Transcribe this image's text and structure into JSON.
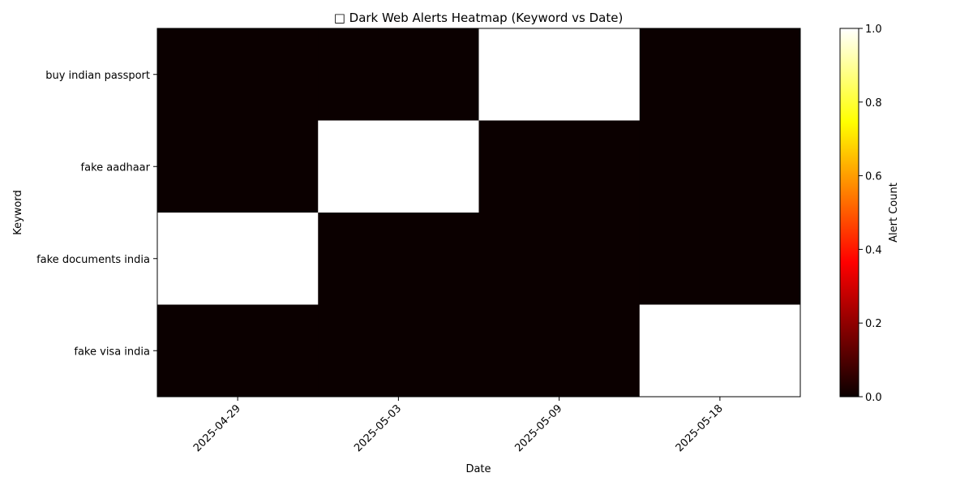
{
  "chart_data": {
    "type": "heatmap",
    "title": "□ Dark Web Alerts Heatmap (Keyword vs Date)",
    "xlabel": "Date",
    "ylabel": "Keyword",
    "x_categories": [
      "2025-04-29",
      "2025-05-03",
      "2025-05-09",
      "2025-05-18"
    ],
    "y_categories": [
      "buy indian passport",
      "fake aadhaar",
      "fake documents india",
      "fake visa india"
    ],
    "values": [
      [
        0,
        0,
        1,
        0
      ],
      [
        0,
        1,
        0,
        0
      ],
      [
        1,
        0,
        0,
        0
      ],
      [
        0,
        0,
        0,
        1
      ]
    ],
    "colormap": "hot",
    "colorbar": {
      "label": "Alert Count",
      "range": [
        0,
        1
      ],
      "ticks": [
        "0.0",
        "0.2",
        "0.4",
        "0.6",
        "0.8",
        "1.0"
      ]
    }
  }
}
